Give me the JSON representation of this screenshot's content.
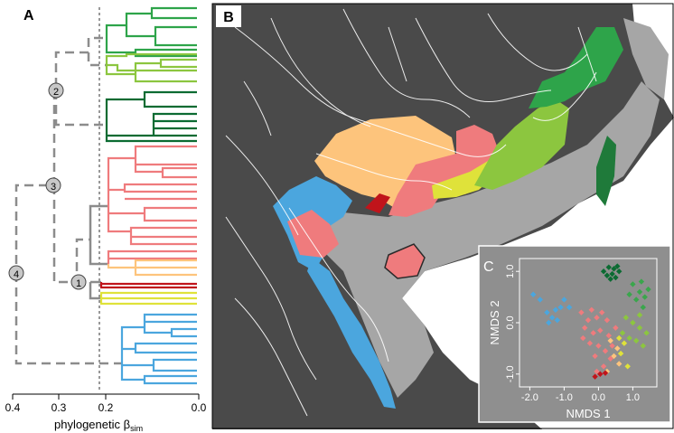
{
  "panels": {
    "a": "A",
    "b": "B",
    "c": "C"
  },
  "dendrogram": {
    "axis_ticks": [
      "0.4",
      "0.3",
      "0.2",
      "0.0"
    ],
    "axis_label": "phylogenetic β",
    "axis_label_sub": "sim",
    "node_labels": [
      "1",
      "2",
      "3",
      "4"
    ],
    "clade_colors": {
      "dark_green": "#1f8a3c",
      "mid_green": "#34a84a",
      "light_green": "#8cc63f",
      "pink": "#ef7b7d",
      "orange": "#fdc47c",
      "dark_red": "#c0141b",
      "yellow": "#dfe23a",
      "blue": "#4ba6de"
    }
  },
  "map": {
    "land_color": "#4a4a4a",
    "lowland_color": "#a6a6a6",
    "sea_color": "#ffffff",
    "river_color": "#ffffff"
  },
  "nmds": {
    "xlabel": "NMDS 1",
    "ylabel": "NMDS 2",
    "x_ticks": [
      "-2.0",
      "-1.0",
      "0.0",
      "1.0"
    ],
    "y_ticks": [
      "1.0",
      "0.0",
      "-1.0"
    ],
    "xlim": [
      -2.3,
      1.7
    ],
    "ylim": [
      -1.25,
      1.25
    ],
    "groups": [
      {
        "color": "#0b6b32",
        "points": [
          [
            0.15,
            1.0
          ],
          [
            0.3,
            1.08
          ],
          [
            0.45,
            1.05
          ],
          [
            0.55,
            1.1
          ],
          [
            0.25,
            0.92
          ],
          [
            0.4,
            0.95
          ],
          [
            0.6,
            1.0
          ],
          [
            0.5,
            0.88
          ],
          [
            0.35,
            0.85
          ]
        ]
      },
      {
        "color": "#3aa64c",
        "points": [
          [
            1.0,
            0.75
          ],
          [
            1.2,
            0.6
          ],
          [
            1.35,
            0.5
          ],
          [
            1.1,
            0.45
          ],
          [
            1.3,
            0.3
          ],
          [
            0.9,
            0.55
          ],
          [
            1.45,
            0.65
          ],
          [
            1.25,
            0.8
          ]
        ]
      },
      {
        "color": "#8cc63f",
        "points": [
          [
            0.8,
            0.1
          ],
          [
            1.0,
            0.0
          ],
          [
            1.2,
            -0.1
          ],
          [
            1.4,
            -0.2
          ],
          [
            0.9,
            -0.3
          ],
          [
            1.1,
            -0.35
          ],
          [
            1.3,
            -0.45
          ],
          [
            0.7,
            -0.2
          ],
          [
            1.2,
            0.15
          ]
        ]
      },
      {
        "color": "#4ba6de",
        "points": [
          [
            -1.9,
            0.55
          ],
          [
            -1.7,
            0.45
          ],
          [
            -1.5,
            0.2
          ],
          [
            -1.35,
            0.1
          ],
          [
            -1.25,
            0.25
          ],
          [
            -1.1,
            0.3
          ],
          [
            -1.0,
            0.45
          ],
          [
            -0.85,
            0.3
          ],
          [
            -1.45,
            0.0
          ],
          [
            -1.2,
            0.05
          ]
        ]
      },
      {
        "color": "#ef7b7d",
        "points": [
          [
            -0.5,
            0.2
          ],
          [
            -0.3,
            0.05
          ],
          [
            -0.2,
            0.25
          ],
          [
            -0.05,
            0.1
          ],
          [
            0.1,
            0.2
          ],
          [
            0.25,
            0.05
          ],
          [
            -0.4,
            -0.1
          ],
          [
            -0.15,
            -0.2
          ],
          [
            0.05,
            -0.15
          ],
          [
            0.3,
            -0.25
          ],
          [
            -0.25,
            -0.4
          ],
          [
            0.0,
            -0.45
          ],
          [
            0.2,
            -0.55
          ],
          [
            -0.1,
            -0.65
          ],
          [
            0.35,
            -0.7
          ],
          [
            0.15,
            -0.85
          ],
          [
            -0.05,
            -0.95
          ],
          [
            0.4,
            -0.45
          ],
          [
            -0.45,
            -0.3
          ],
          [
            0.5,
            -0.1
          ]
        ]
      },
      {
        "color": "#fdc47c",
        "points": [
          [
            0.35,
            -0.35
          ],
          [
            0.55,
            -0.5
          ],
          [
            0.45,
            -0.65
          ],
          [
            0.6,
            -0.8
          ],
          [
            0.25,
            -0.95
          ]
        ]
      },
      {
        "color": "#dfe23a",
        "points": [
          [
            0.6,
            -0.3
          ],
          [
            0.75,
            -0.4
          ],
          [
            0.65,
            -0.6
          ],
          [
            0.85,
            -0.85
          ]
        ]
      },
      {
        "color": "#c0141b",
        "points": [
          [
            -0.1,
            -1.05
          ],
          [
            0.05,
            -1.0
          ],
          [
            0.2,
            -0.98
          ]
        ]
      }
    ]
  }
}
